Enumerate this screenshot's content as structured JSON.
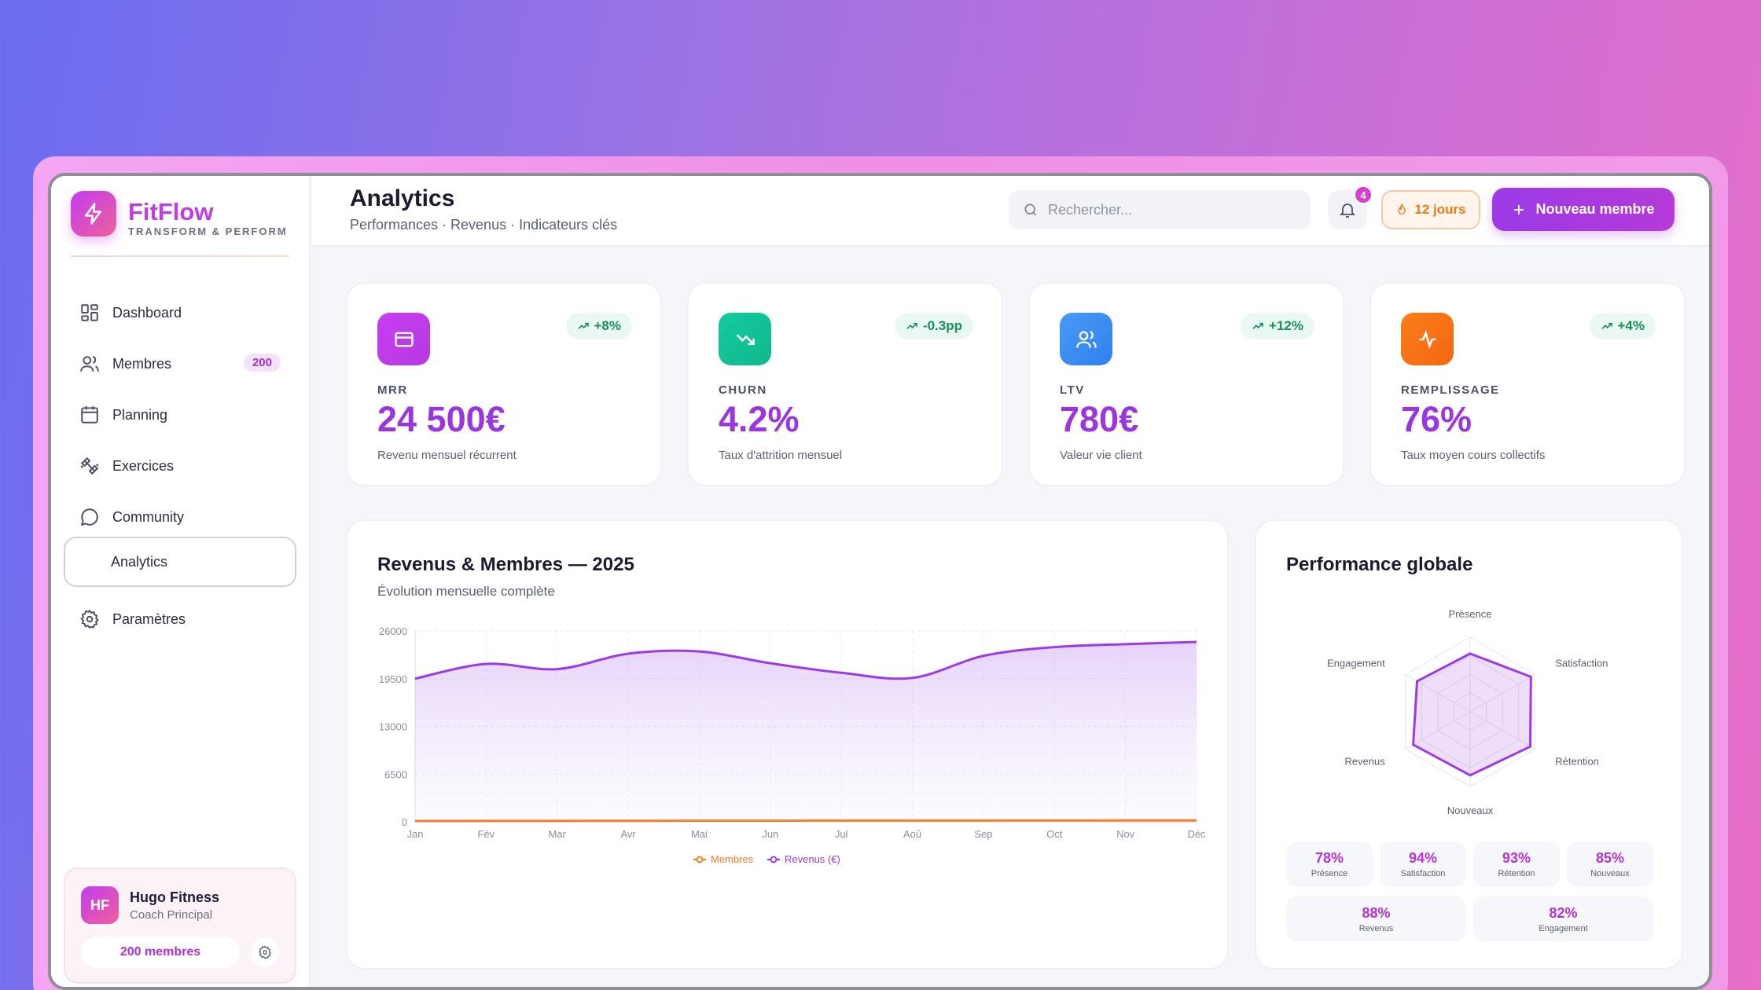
{
  "brand": {
    "name": "FitFlow",
    "tagline": "TRANSFORM & PERFORM"
  },
  "sidebar": {
    "items": [
      {
        "label": "Dashboard",
        "icon": "dashboard-icon"
      },
      {
        "label": "Membres",
        "icon": "users-icon",
        "badge": "200"
      },
      {
        "label": "Planning",
        "icon": "calendar-icon"
      },
      {
        "label": "Exercices",
        "icon": "dumbbell-icon"
      },
      {
        "label": "Community",
        "icon": "chat-icon"
      },
      {
        "label": "Analytics",
        "icon": "analytics-icon",
        "active": true
      },
      {
        "label": "Paramètres",
        "icon": "gear-icon"
      }
    ]
  },
  "profile": {
    "initials": "HF",
    "name": "Hugo Fitness",
    "role": "Coach Principal",
    "members": "200 membres"
  },
  "header": {
    "title": "Analytics",
    "subtitle": "Performances · Revenus · Indicateurs clés",
    "search_placeholder": "Rechercher...",
    "notifications": "4",
    "streak": "12 jours",
    "new_member": "Nouveau membre"
  },
  "kpis": [
    {
      "label": "MRR",
      "value": "24 500€",
      "desc": "Revenu mensuel récurrent",
      "trend": "+8%",
      "icon": "card-icon",
      "color": "#c43cf0"
    },
    {
      "label": "CHURN",
      "value": "4.2%",
      "desc": "Taux d'attrition mensuel",
      "trend": "-0.3pp",
      "icon": "trending-down-icon",
      "color": "#14c197"
    },
    {
      "label": "LTV",
      "value": "780€",
      "desc": "Valeur vie client",
      "trend": "+12%",
      "icon": "users-icon",
      "color": "#3d8ff5"
    },
    {
      "label": "REMPLISSAGE",
      "value": "76%",
      "desc": "Taux moyen cours collectifs",
      "trend": "+4%",
      "icon": "activity-icon",
      "color": "#f9741a"
    }
  ],
  "chart_card": {
    "title": "Revenus & Membres — 2025",
    "subtitle": "Évolution mensuelle complète"
  },
  "chart_data": {
    "type": "area",
    "categories": [
      "Jan",
      "Fév",
      "Mar",
      "Avr",
      "Mai",
      "Jun",
      "Jul",
      "Aoû",
      "Sep",
      "Oct",
      "Nov",
      "Déc"
    ],
    "series": [
      {
        "name": "Membres",
        "values": [
          120,
          130,
          140,
          150,
          160,
          165,
          170,
          175,
          180,
          185,
          195,
          200
        ],
        "color": "#f97a28"
      },
      {
        "name": "Revenus (€)",
        "values": [
          19500,
          21500,
          20800,
          22900,
          23200,
          21600,
          20300,
          19600,
          22600,
          23800,
          24200,
          24500
        ],
        "color": "#9b3ae6"
      }
    ],
    "yticks": [
      "0",
      "6500",
      "13000",
      "19500",
      "26000"
    ],
    "ylim": [
      0,
      26000
    ],
    "grid": true,
    "legend": "bottom"
  },
  "radar": {
    "title": "Performance globale",
    "axes": [
      {
        "label": "Présence",
        "value": 78
      },
      {
        "label": "Satisfaction",
        "value": 94
      },
      {
        "label": "Rétention",
        "value": 93
      },
      {
        "label": "Nouveaux",
        "value": 85
      },
      {
        "label": "Revenus",
        "value": 88
      },
      {
        "label": "Engagement",
        "value": 82
      }
    ],
    "tiles": [
      {
        "value": "78%",
        "label": "Présence"
      },
      {
        "value": "94%",
        "label": "Satisfaction"
      },
      {
        "value": "93%",
        "label": "Rétention"
      },
      {
        "value": "85%",
        "label": "Nouveaux"
      },
      {
        "value": "88%",
        "label": "Revenus"
      },
      {
        "value": "82%",
        "label": "Engagement"
      }
    ]
  }
}
